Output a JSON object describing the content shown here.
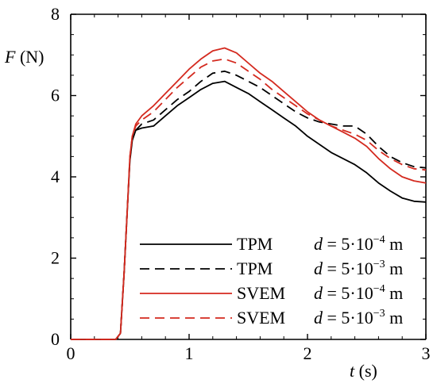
{
  "chart_data": {
    "type": "line",
    "title": "",
    "xlabel": {
      "var": "t",
      "unit": " (s)"
    },
    "ylabel": {
      "var": "F",
      "unit": " (N)"
    },
    "xlim": [
      0,
      3
    ],
    "ylim": [
      0,
      8
    ],
    "xticks": [
      "0",
      "1",
      "2",
      "3"
    ],
    "yticks": [
      "0",
      "2",
      "4",
      "6",
      "8"
    ],
    "grid": false,
    "legend_position": "bottom-right",
    "series": [
      {
        "name": "TPM",
        "label": "d = 5·10⁻⁴ m",
        "label_parts": [
          "d",
          " = 5·10",
          "−4",
          " m"
        ],
        "color": "#000000",
        "dash": "solid",
        "x": [
          0,
          0.38,
          0.42,
          0.45,
          0.48,
          0.5,
          0.52,
          0.55,
          0.6,
          0.7,
          0.8,
          0.9,
          1.0,
          1.1,
          1.2,
          1.3,
          1.4,
          1.5,
          1.6,
          1.7,
          1.8,
          1.9,
          2.0,
          2.1,
          2.2,
          2.3,
          2.4,
          2.5,
          2.6,
          2.7,
          2.8,
          2.9,
          3.0
        ],
        "y": [
          0,
          0,
          0.15,
          1.6,
          3.3,
          4.4,
          4.9,
          5.15,
          5.2,
          5.25,
          5.5,
          5.75,
          5.95,
          6.15,
          6.3,
          6.35,
          6.2,
          6.05,
          5.85,
          5.65,
          5.45,
          5.25,
          5.0,
          4.8,
          4.6,
          4.45,
          4.3,
          4.1,
          3.85,
          3.65,
          3.48,
          3.4,
          3.38
        ]
      },
      {
        "name": "TPM",
        "label": "d = 5·10⁻³ m",
        "label_parts": [
          "d",
          " = 5·10",
          "−3",
          " m"
        ],
        "color": "#000000",
        "dash": "dashed",
        "x": [
          0,
          0.38,
          0.42,
          0.45,
          0.48,
          0.5,
          0.52,
          0.55,
          0.6,
          0.7,
          0.8,
          0.9,
          1.0,
          1.1,
          1.2,
          1.3,
          1.4,
          1.5,
          1.6,
          1.7,
          1.8,
          1.9,
          2.0,
          2.1,
          2.2,
          2.3,
          2.4,
          2.5,
          2.6,
          2.7,
          2.8,
          2.9,
          3.0
        ],
        "y": [
          0,
          0,
          0.15,
          1.6,
          3.3,
          4.45,
          4.95,
          5.15,
          5.3,
          5.4,
          5.65,
          5.9,
          6.1,
          6.35,
          6.55,
          6.6,
          6.5,
          6.35,
          6.2,
          6.0,
          5.8,
          5.6,
          5.45,
          5.35,
          5.3,
          5.25,
          5.25,
          5.05,
          4.75,
          4.5,
          4.35,
          4.25,
          4.22
        ]
      },
      {
        "name": "SVEM",
        "label": "d = 5·10⁻⁴ m",
        "label_parts": [
          "d",
          " = 5·10",
          "−4",
          " m"
        ],
        "color": "#d42a1f",
        "dash": "solid",
        "x": [
          0,
          0.38,
          0.42,
          0.45,
          0.48,
          0.5,
          0.52,
          0.55,
          0.6,
          0.7,
          0.8,
          0.9,
          1.0,
          1.1,
          1.2,
          1.3,
          1.4,
          1.5,
          1.6,
          1.7,
          1.8,
          1.9,
          2.0,
          2.1,
          2.2,
          2.3,
          2.4,
          2.5,
          2.6,
          2.7,
          2.8,
          2.9,
          3.0
        ],
        "y": [
          0,
          0,
          0.15,
          1.6,
          3.3,
          4.5,
          5.0,
          5.3,
          5.5,
          5.75,
          6.05,
          6.35,
          6.65,
          6.9,
          7.1,
          7.17,
          7.05,
          6.8,
          6.55,
          6.35,
          6.1,
          5.85,
          5.6,
          5.4,
          5.25,
          5.1,
          4.95,
          4.75,
          4.45,
          4.2,
          4.0,
          3.9,
          3.85
        ]
      },
      {
        "name": "SVEM",
        "label": "d = 5·10⁻³ m",
        "label_parts": [
          "d",
          " = 5·10",
          "−3",
          " m"
        ],
        "color": "#d42a1f",
        "dash": "dashed",
        "x": [
          0,
          0.38,
          0.42,
          0.45,
          0.48,
          0.5,
          0.52,
          0.55,
          0.6,
          0.7,
          0.8,
          0.9,
          1.0,
          1.1,
          1.2,
          1.3,
          1.4,
          1.5,
          1.6,
          1.7,
          1.8,
          1.9,
          2.0,
          2.1,
          2.2,
          2.3,
          2.4,
          2.5,
          2.6,
          2.7,
          2.8,
          2.9,
          3.0
        ],
        "y": [
          0,
          0,
          0.15,
          1.6,
          3.3,
          4.5,
          5.0,
          5.25,
          5.4,
          5.6,
          5.9,
          6.2,
          6.45,
          6.7,
          6.85,
          6.9,
          6.8,
          6.6,
          6.4,
          6.15,
          5.95,
          5.75,
          5.55,
          5.4,
          5.25,
          5.15,
          5.05,
          4.9,
          4.65,
          4.45,
          4.3,
          4.2,
          4.17
        ]
      }
    ]
  }
}
